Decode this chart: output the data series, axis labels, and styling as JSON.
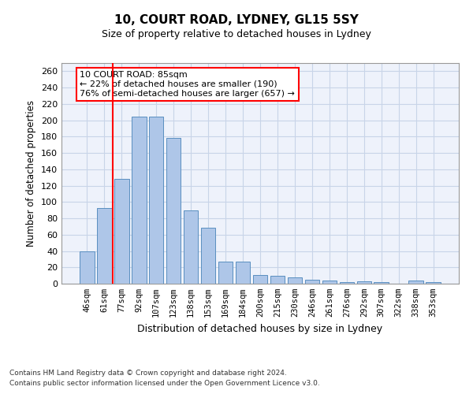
{
  "title1": "10, COURT ROAD, LYDNEY, GL15 5SY",
  "title2": "Size of property relative to detached houses in Lydney",
  "xlabel": "Distribution of detached houses by size in Lydney",
  "ylabel": "Number of detached properties",
  "bar_labels": [
    "46sqm",
    "61sqm",
    "77sqm",
    "92sqm",
    "107sqm",
    "123sqm",
    "138sqm",
    "153sqm",
    "169sqm",
    "184sqm",
    "200sqm",
    "215sqm",
    "230sqm",
    "246sqm",
    "261sqm",
    "276sqm",
    "292sqm",
    "307sqm",
    "322sqm",
    "338sqm",
    "353sqm"
  ],
  "bar_values": [
    40,
    93,
    128,
    204,
    204,
    178,
    90,
    68,
    27,
    27,
    11,
    10,
    8,
    5,
    4,
    2,
    3,
    2,
    0,
    4,
    2
  ],
  "bar_color": "#aec6e8",
  "bar_edge_color": "#5a8fc0",
  "vline_x": 1.5,
  "vline_color": "red",
  "annotation_text": "10 COURT ROAD: 85sqm\n← 22% of detached houses are smaller (190)\n76% of semi-detached houses are larger (657) →",
  "annotation_box_color": "white",
  "annotation_box_edge": "red",
  "ylim": [
    0,
    270
  ],
  "yticks": [
    0,
    20,
    40,
    60,
    80,
    100,
    120,
    140,
    160,
    180,
    200,
    220,
    240,
    260
  ],
  "footer1": "Contains HM Land Registry data © Crown copyright and database right 2024.",
  "footer2": "Contains public sector information licensed under the Open Government Licence v3.0.",
  "bg_color": "#eef2fb",
  "grid_color": "#c8d4e8"
}
